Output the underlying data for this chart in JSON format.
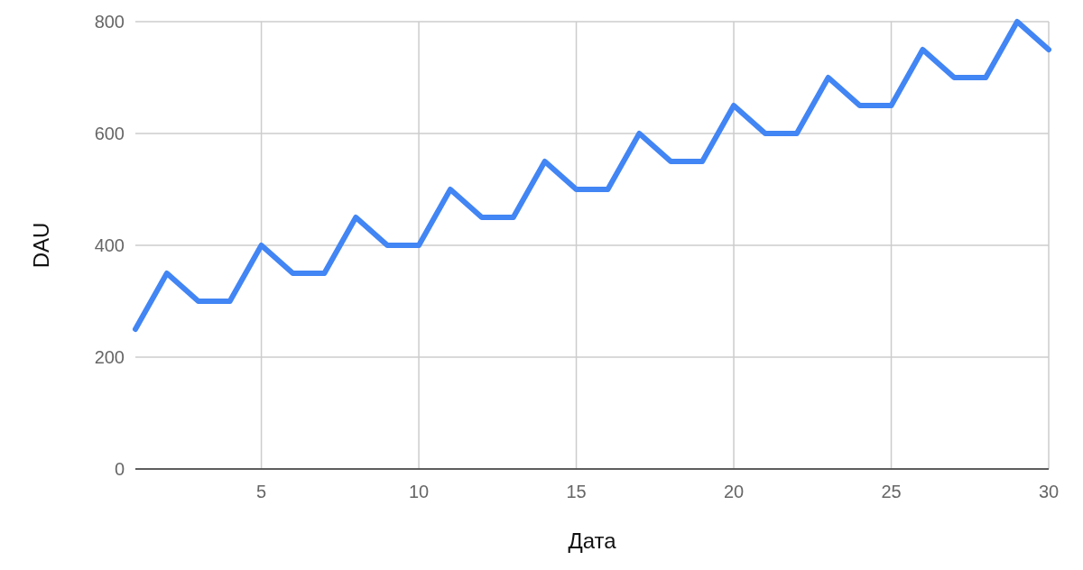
{
  "chart_data": {
    "type": "line",
    "xlabel": "Дата",
    "ylabel": "DAU",
    "x": [
      1,
      2,
      3,
      4,
      5,
      6,
      7,
      8,
      9,
      10,
      11,
      12,
      13,
      14,
      15,
      16,
      17,
      18,
      19,
      20,
      21,
      22,
      23,
      24,
      25,
      26,
      27,
      28,
      29,
      30
    ],
    "series": [
      {
        "color": "#4285f4",
        "values": [
          250,
          350,
          300,
          300,
          400,
          350,
          350,
          450,
          400,
          400,
          500,
          450,
          450,
          550,
          500,
          500,
          600,
          550,
          550,
          650,
          600,
          600,
          700,
          650,
          650,
          750,
          700,
          700,
          800,
          750
        ]
      }
    ],
    "xlim": [
      1,
      30
    ],
    "xticks": [
      5,
      10,
      15,
      20,
      25,
      30
    ],
    "ylim": [
      0,
      800
    ],
    "yticks": [
      0,
      200,
      400,
      600,
      800
    ],
    "grid": true,
    "line_style": "solid",
    "marker": "none"
  }
}
